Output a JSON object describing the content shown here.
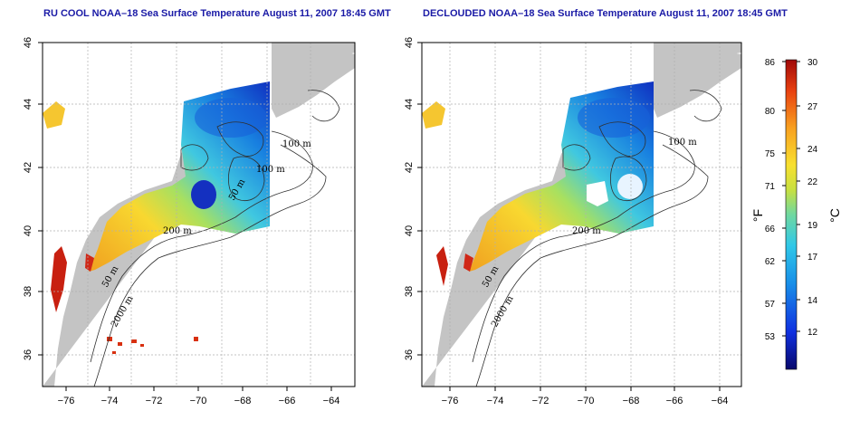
{
  "panels": [
    {
      "title": "RU COOL NOAA–18 Sea Surface Temperature August 11, 2007 18:45 GMT",
      "cloudmask": false
    },
    {
      "title": "DECLOUDED NOAA–18 Sea Surface Temperature August 11, 2007 18:45 GMT",
      "cloudmask": true
    }
  ],
  "axes": {
    "lat_ticks": [
      "46",
      "44",
      "42",
      "40",
      "38",
      "36"
    ],
    "lon_ticks": [
      "−76",
      "−74",
      "−72",
      "−70",
      "−68",
      "−66",
      "−64"
    ]
  },
  "contour_labels": {
    "m100": "100 m",
    "m100b": "100 m",
    "m50": "50 m",
    "m200": "200 m",
    "m50b": "50 m",
    "m2000": "2000 m"
  },
  "colorbar": {
    "fahrenheit_ticks": [
      "86",
      "80",
      "75",
      "71",
      "66",
      "62",
      "57",
      "53"
    ],
    "celsius_ticks": [
      "30",
      "27",
      "24",
      "22",
      "19",
      "17",
      "14",
      "12"
    ],
    "fahrenheit_unit": "°F",
    "celsius_unit": "°C",
    "colors": [
      "#08086b",
      "#1030e0",
      "#1890e8",
      "#30c8e8",
      "#70d8a0",
      "#c8e040",
      "#f8e030",
      "#f8a020",
      "#e84010",
      "#a00808"
    ]
  },
  "colors": {
    "land": "#c4c4c4",
    "ocean_masked": "#ffffff",
    "title": "#1a1aa6",
    "grid": "#b0b0b0"
  }
}
